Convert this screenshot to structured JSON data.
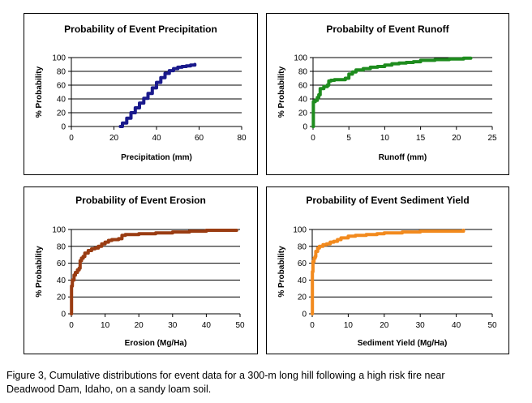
{
  "chart_data": [
    {
      "type": "line",
      "title": "Probability of Event Precipitation",
      "xlabel": "Precipitation (mm)",
      "ylabel": "% Probability",
      "xlim": [
        0,
        80
      ],
      "ylim": [
        0,
        100
      ],
      "xticks": [
        0,
        20,
        40,
        60,
        80
      ],
      "yticks": [
        0,
        20,
        40,
        60,
        80,
        100
      ],
      "grid": "horizontal",
      "color": "#1a1a8c",
      "series": [
        {
          "x": [
            23,
            24,
            26,
            28,
            30,
            32,
            34,
            36,
            38,
            40,
            42,
            44,
            46,
            48,
            50,
            52,
            54,
            56,
            58
          ],
          "y": [
            0,
            5,
            12,
            20,
            27,
            34,
            41,
            48,
            56,
            64,
            71,
            77,
            81,
            84,
            86,
            87,
            88,
            89,
            90
          ]
        }
      ]
    },
    {
      "type": "line",
      "title": "Probabilty of Event Runoff",
      "xlabel": "Runoff (mm)",
      "ylabel": "% Probability",
      "xlim": [
        0,
        25
      ],
      "ylim": [
        0,
        100
      ],
      "xticks": [
        0,
        5,
        10,
        15,
        20,
        25
      ],
      "yticks": [
        0,
        20,
        40,
        60,
        80,
        100
      ],
      "grid": "horizontal",
      "color": "#1e8c1e",
      "series": [
        {
          "x": [
            0,
            0.05,
            0.3,
            0.6,
            0.8,
            1.0,
            1.5,
            2.0,
            2.2,
            2.5,
            3.0,
            3.5,
            4.0,
            4.5,
            5.0,
            5.5,
            6.0,
            7.0,
            8.0,
            9.0,
            10.0,
            11.0,
            12.0,
            13.0,
            14.0,
            15.0,
            17.0,
            19.0,
            21.0,
            22.0
          ],
          "y": [
            0,
            36,
            38,
            42,
            46,
            55,
            58,
            60,
            66,
            67,
            68,
            68,
            68,
            70,
            76,
            79,
            82,
            84,
            86,
            87,
            89,
            91,
            92,
            93,
            94,
            96,
            97,
            98,
            99,
            99
          ]
        }
      ]
    },
    {
      "type": "line",
      "title": "Probability of Event Erosion",
      "xlabel": "Erosion (Mg/Ha)",
      "ylabel": "% Probability",
      "xlim": [
        0,
        50
      ],
      "ylim": [
        0,
        100
      ],
      "xticks": [
        0,
        10,
        20,
        30,
        40,
        50
      ],
      "yticks": [
        0,
        20,
        40,
        60,
        80,
        100
      ],
      "grid": "horizontal",
      "color": "#9a3c12",
      "series": [
        {
          "x": [
            0,
            0.05,
            0.3,
            0.8,
            1.2,
            1.8,
            2.3,
            2.6,
            3.0,
            3.5,
            4.0,
            5.0,
            6.0,
            7.0,
            8.0,
            9.0,
            10.0,
            11.0,
            12.0,
            14.0,
            15.0,
            16.0,
            20.0,
            25.0,
            30.0,
            35.0,
            40.0,
            45.0,
            49.0
          ],
          "y": [
            0,
            33,
            40,
            46,
            49,
            52,
            54,
            63,
            66,
            68,
            72,
            75,
            77,
            78,
            80,
            83,
            85,
            87,
            88,
            89,
            93,
            94,
            95,
            96,
            97,
            98,
            99,
            99,
            99
          ]
        }
      ]
    },
    {
      "type": "line",
      "title": "Probability of Event Sediment Yield",
      "xlabel": "Sediment Yield (Mg/Ha)",
      "ylabel": "% Probability",
      "xlim": [
        0,
        50
      ],
      "ylim": [
        0,
        100
      ],
      "xticks": [
        0,
        10,
        20,
        30,
        40,
        50
      ],
      "yticks": [
        0,
        20,
        40,
        60,
        80,
        100
      ],
      "grid": "horizontal",
      "color": "#f28a1e",
      "series": [
        {
          "x": [
            0,
            0.05,
            0.2,
            0.5,
            0.8,
            1.0,
            1.5,
            2.0,
            3.0,
            4.0,
            5.0,
            6.0,
            7.0,
            8.0,
            10.0,
            12.0,
            15.0,
            18.0,
            20.0,
            25.0,
            30.0,
            35.0,
            42.0
          ],
          "y": [
            0,
            50,
            62,
            66,
            68,
            74,
            78,
            80,
            82,
            83,
            85,
            86,
            88,
            90,
            92,
            93,
            94,
            95,
            96,
            97,
            98,
            98,
            99
          ]
        }
      ]
    }
  ],
  "caption": {
    "line1": "Figure 3, Cumulative distributions for event data for a 300-m long hill following a high risk fire near",
    "line2": "Deadwood Dam, Idaho, on a sandy loam soil."
  }
}
